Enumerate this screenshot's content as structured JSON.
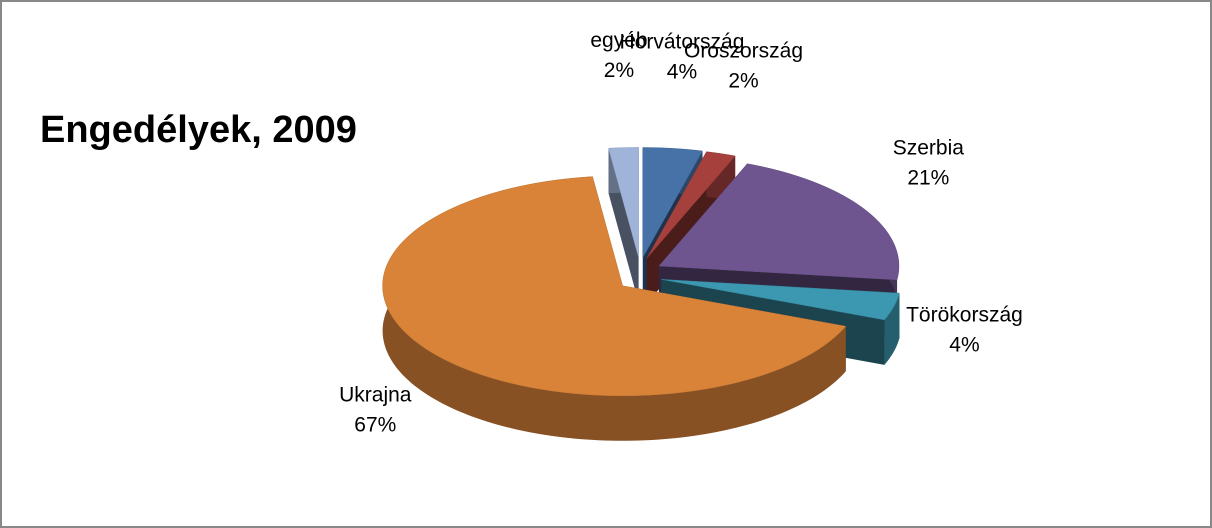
{
  "chart_data": {
    "type": "pie3d",
    "title": "Engedélyek, 2009",
    "categories": [
      "Horvátország",
      "Oroszország",
      "Szerbia",
      "Törökország",
      "Ukrajna",
      "egyéb"
    ],
    "values": [
      4,
      2,
      21,
      4,
      67,
      2
    ],
    "value_labels": [
      "4%",
      "2%",
      "21%",
      "4%",
      "67%",
      "2%"
    ],
    "colors": [
      "#4672a8",
      "#a5403d",
      "#6f5590",
      "#3c97b0",
      "#d98339",
      "#9fb4d8"
    ]
  }
}
